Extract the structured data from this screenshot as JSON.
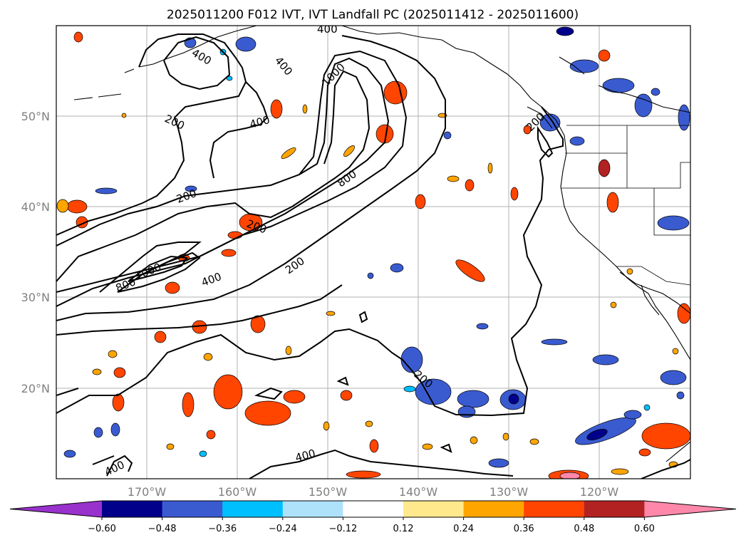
{
  "title": "2025011200 F012 IVT, IVT Landfall PC (2025011412 - 2025011600)",
  "map": {
    "lat_labels": [
      "50°N",
      "40°N",
      "30°N",
      "20°N"
    ],
    "lon_labels": [
      "170°W",
      "160°W",
      "150°W",
      "140°W",
      "130°W",
      "120°W"
    ],
    "contour_levels": [
      200,
      400,
      800,
      1000
    ],
    "contour_labels": [
      "200",
      "400",
      "400",
      "1000",
      "800",
      "200",
      "200",
      "400",
      "200",
      "400",
      "1000",
      "800",
      "400",
      "200",
      "200",
      "400",
      "400",
      "400"
    ]
  },
  "colorbar": {
    "colors": [
      "#9932CC",
      "#00008B",
      "#3A5BD0",
      "#00BFFF",
      "#ADE2FA",
      "#FFFFFF",
      "#FFE98C",
      "#FFA500",
      "#FF4500",
      "#B22222",
      "#FF88AA"
    ],
    "ticks": [
      "−0.60",
      "−0.48",
      "−0.36",
      "−0.24",
      "−0.12",
      "0.12",
      "0.24",
      "0.36",
      "0.48",
      "0.60"
    ]
  }
}
